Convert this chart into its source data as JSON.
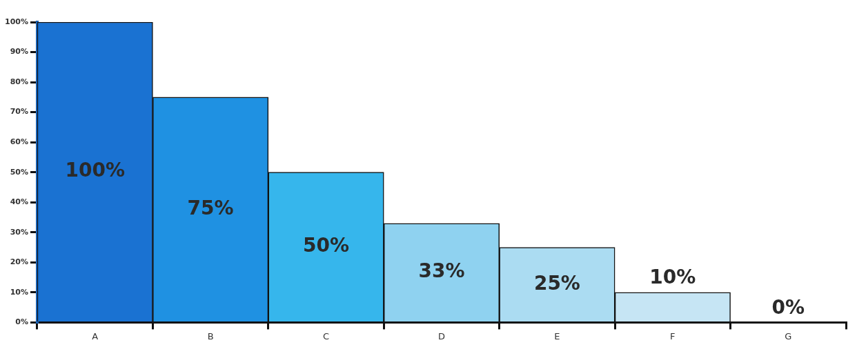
{
  "chart_data": {
    "type": "bar",
    "categories": [
      "A",
      "B",
      "C",
      "D",
      "E",
      "F",
      "G"
    ],
    "values": [
      100,
      75,
      50,
      33,
      25,
      10,
      0
    ],
    "colors": [
      "#1a72d2",
      "#1f91e2",
      "#36b6ec",
      "#8fd2f0",
      "#abdcf2",
      "#c6e5f4",
      "#eef7fb"
    ],
    "ylim": [
      0,
      100
    ],
    "yticks": [
      {
        "value": 0,
        "label": "0%"
      },
      {
        "value": 10,
        "label": "10%"
      },
      {
        "value": 20,
        "label": "20%"
      },
      {
        "value": 30,
        "label": "30%"
      },
      {
        "value": 40,
        "label": "40%"
      },
      {
        "value": 50,
        "label": "50%"
      },
      {
        "value": 60,
        "label": "60%"
      },
      {
        "value": 70,
        "label": "70%"
      },
      {
        "value": 80,
        "label": "80%"
      },
      {
        "value": 90,
        "label": "90%"
      },
      {
        "value": 100,
        "label": "100%"
      }
    ],
    "value_labels": [
      "100%",
      "75%",
      "50%",
      "33%",
      "25%",
      "10%",
      "0%"
    ],
    "grid": false,
    "legend": false
  }
}
